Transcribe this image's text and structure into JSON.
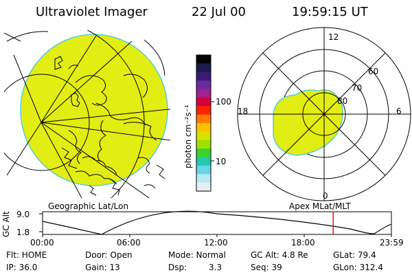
{
  "header": {
    "title": "Ultraviolet Imager",
    "date": "22 Jul 00",
    "time": "19:59:15 UT"
  },
  "colorbar": {
    "unit_label": "photon cm⁻²s⁻¹",
    "ticks": [
      "100",
      "10"
    ],
    "colors": [
      "#050505",
      "#1b1b4d",
      "#3a1a75",
      "#6a2aa0",
      "#a2208f",
      "#d4003a",
      "#ff2200",
      "#ff7a00",
      "#ffbf00",
      "#d8e000",
      "#9ee000",
      "#3bd22b",
      "#25c8b0",
      "#66d6e8",
      "#b9e7f2",
      "#e9eef2"
    ]
  },
  "left_panel": {
    "label": "Geographic Lat/Lon",
    "fill_color": "#e2ed13"
  },
  "right_panel": {
    "label": "Apex MLat/MLT",
    "mlt_labels": [
      "12",
      "18",
      "6",
      "0"
    ],
    "mlat_labels": [
      "60",
      "70",
      "80"
    ],
    "fill_color": "#e2ed13"
  },
  "timeline": {
    "y_axis_label": "GC Alt",
    "y_ticks": [
      "9.0",
      "1.8"
    ],
    "x_ticks": [
      "00:00",
      "06:00",
      "12:00",
      "18:00",
      "23:59"
    ],
    "current_time_fraction": 0.833
  },
  "status": {
    "flt": "Flt: HOME",
    "ip": "IP: 36.0",
    "door": "Door: Open",
    "gain": "Gain: 13",
    "mode": "Mode: Normal",
    "dsp_label": "Dsp:",
    "dsp_value": "3.3",
    "gc_alt": "GC Alt: 4.8 Re",
    "seq": "Seq: 39",
    "glat": "GLat: 79.4",
    "glon": "GLon: 312.4"
  }
}
